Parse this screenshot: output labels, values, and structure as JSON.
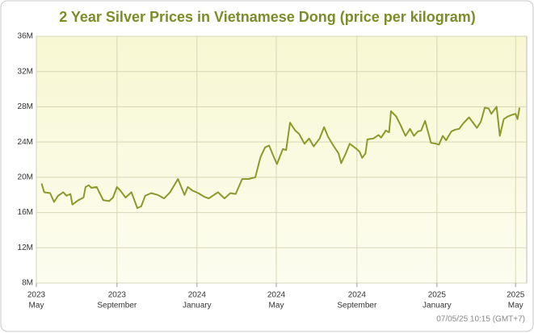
{
  "chart_data": {
    "type": "line",
    "title": "2 Year Silver Prices in Vietnamese Dong (price per kilogram)",
    "footer": "07/05/25 10:15 (GMT+7)",
    "grid": true,
    "xlim": [
      "2023-05-01",
      "2025-05-18"
    ],
    "xticks": [
      {
        "value": "2023-05",
        "label": [
          "2023",
          "May"
        ]
      },
      {
        "value": "2023-09",
        "label": [
          "2023",
          "September"
        ]
      },
      {
        "value": "2024-01",
        "label": [
          "2024",
          "January"
        ]
      },
      {
        "value": "2024-05",
        "label": [
          "2024",
          "May"
        ]
      },
      {
        "value": "2024-09",
        "label": [
          "2024",
          "September"
        ]
      },
      {
        "value": "2025-01",
        "label": [
          "2025",
          "January"
        ]
      },
      {
        "value": "2025-05",
        "label": [
          "2025",
          "May"
        ]
      }
    ],
    "ylim": [
      8,
      36
    ],
    "yticks": [
      {
        "value": 8,
        "label": "8M"
      },
      {
        "value": 12,
        "label": "12M"
      },
      {
        "value": 16,
        "label": "16M"
      },
      {
        "value": 20,
        "label": "20M"
      },
      {
        "value": 24,
        "label": "24M"
      },
      {
        "value": 28,
        "label": "28M"
      },
      {
        "value": 32,
        "label": "32M"
      },
      {
        "value": 36,
        "label": "36M"
      }
    ],
    "x": [
      "2023-05-09",
      "2023-05-13",
      "2023-05-22",
      "2023-05-28",
      "2023-06-03",
      "2023-06-11",
      "2023-06-16",
      "2023-06-22",
      "2023-06-25",
      "2023-07-04",
      "2023-07-12",
      "2023-07-15",
      "2023-07-20",
      "2023-07-24",
      "2023-08-01",
      "2023-08-11",
      "2023-08-20",
      "2023-08-26",
      "2023-09-01",
      "2023-09-07",
      "2023-09-14",
      "2023-09-23",
      "2023-10-02",
      "2023-10-08",
      "2023-10-14",
      "2023-10-23",
      "2023-11-02",
      "2023-11-12",
      "2023-11-21",
      "2023-12-03",
      "2023-12-13",
      "2023-12-18",
      "2023-12-25",
      "2024-01-03",
      "2024-01-12",
      "2024-01-19",
      "2024-01-25",
      "2024-02-02",
      "2024-02-12",
      "2024-02-21",
      "2024-02-29",
      "2024-03-10",
      "2024-03-20",
      "2024-03-30",
      "2024-04-07",
      "2024-04-14",
      "2024-04-20",
      "2024-04-26",
      "2024-05-02",
      "2024-05-11",
      "2024-05-16",
      "2024-05-22",
      "2024-05-30",
      "2024-06-05",
      "2024-06-13",
      "2024-06-20",
      "2024-06-27",
      "2024-07-06",
      "2024-07-13",
      "2024-07-19",
      "2024-07-27",
      "2024-08-04",
      "2024-08-08",
      "2024-08-15",
      "2024-08-21",
      "2024-08-30",
      "2024-09-05",
      "2024-09-09",
      "2024-09-14",
      "2024-09-17",
      "2024-09-26",
      "2024-10-04",
      "2024-10-08",
      "2024-10-15",
      "2024-10-20",
      "2024-10-23",
      "2024-10-31",
      "2024-11-06",
      "2024-11-14",
      "2024-11-21",
      "2024-11-27",
      "2024-12-03",
      "2024-12-08",
      "2024-12-14",
      "2024-12-19",
      "2024-12-23",
      "2024-12-31",
      "2025-01-04",
      "2025-01-10",
      "2025-01-15",
      "2025-01-23",
      "2025-01-29",
      "2025-02-04",
      "2025-02-10",
      "2025-02-19",
      "2025-02-25",
      "2025-03-03",
      "2025-03-09",
      "2025-03-15",
      "2025-03-21",
      "2025-03-25",
      "2025-04-02",
      "2025-04-07",
      "2025-04-13",
      "2025-04-19",
      "2025-04-26",
      "2025-05-01",
      "2025-05-04",
      "2025-05-07"
    ],
    "series": [
      {
        "name": "Silver",
        "color": "#8a9a2a",
        "values": [
          19.3,
          18.3,
          18.2,
          17.2,
          17.9,
          18.3,
          17.9,
          18.1,
          16.9,
          17.4,
          17.7,
          18.9,
          19.1,
          18.8,
          18.9,
          17.4,
          17.3,
          17.7,
          18.9,
          18.4,
          17.7,
          18.3,
          16.5,
          16.7,
          17.9,
          18.2,
          18.0,
          17.6,
          18.3,
          19.8,
          18.0,
          18.9,
          18.5,
          18.2,
          17.8,
          17.6,
          17.9,
          18.3,
          17.6,
          18.2,
          18.1,
          19.8,
          19.8,
          20.0,
          22.3,
          23.4,
          23.6,
          22.5,
          21.5,
          23.2,
          23.1,
          26.2,
          25.3,
          24.9,
          23.8,
          24.4,
          23.5,
          24.4,
          25.7,
          24.6,
          23.6,
          22.7,
          21.6,
          22.7,
          23.8,
          23.3,
          22.9,
          22.2,
          22.7,
          24.3,
          24.4,
          24.8,
          24.5,
          25.3,
          25.1,
          27.5,
          26.9,
          26.0,
          24.7,
          25.5,
          24.7,
          25.2,
          25.3,
          26.4,
          25.0,
          23.9,
          23.8,
          23.7,
          24.7,
          24.2,
          25.2,
          25.4,
          25.5,
          26.1,
          26.8,
          26.2,
          25.6,
          26.3,
          27.9,
          27.8,
          27.2,
          28.0,
          24.7,
          26.6,
          26.9,
          27.1,
          27.2,
          26.6,
          27.9
        ]
      }
    ]
  }
}
